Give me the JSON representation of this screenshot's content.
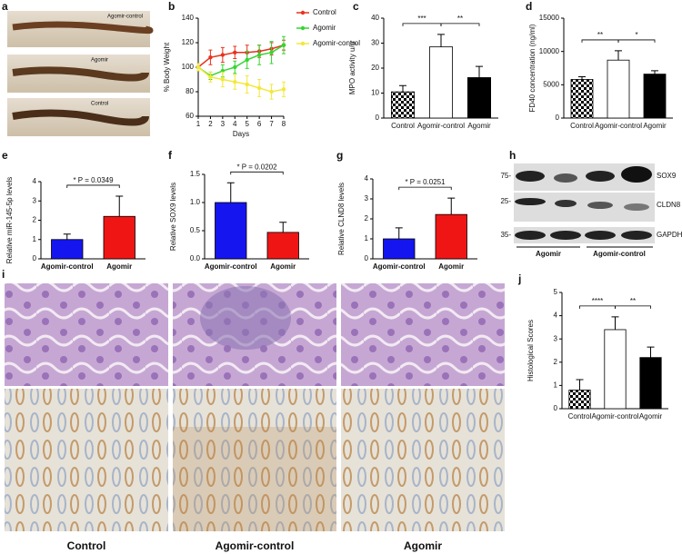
{
  "panel_labels": [
    "a",
    "b",
    "c",
    "d",
    "e",
    "f",
    "g",
    "h",
    "i",
    "j"
  ],
  "panel_a": {
    "labels": [
      "Agomir-control",
      "Agomir",
      "Control"
    ]
  },
  "panel_h": {
    "bands": [
      "SOX9",
      "CLDN8",
      "GAPDH"
    ],
    "markers": [
      "75-",
      "25-",
      "35-"
    ],
    "groups": [
      "Agomir",
      "Agomir-control"
    ]
  },
  "panel_i": {
    "columns": [
      "Control",
      "Agomir-control",
      "Agomir"
    ]
  },
  "chart_data": [
    {
      "type": "line",
      "ylabel": "% Body Weight",
      "xlabel": "Days",
      "x": [
        1,
        2,
        3,
        4,
        5,
        6,
        7,
        8
      ],
      "xlim": [
        1,
        8
      ],
      "xticks": [
        1,
        2,
        3,
        4,
        5,
        6,
        7,
        8
      ],
      "ylim": [
        60,
        140
      ],
      "yticks": [
        60,
        80,
        100,
        120,
        140
      ],
      "series": [
        {
          "name": "Control",
          "color": "#e8321e",
          "values": [
            100,
            108,
            110,
            112,
            112,
            113,
            115,
            118
          ],
          "errors": [
            3,
            6,
            6,
            5,
            6,
            5,
            5,
            4
          ]
        },
        {
          "name": "Agomir",
          "color": "#35d631",
          "values": [
            100,
            93,
            97,
            100,
            106,
            110,
            112,
            118
          ],
          "errors": [
            3,
            3,
            5,
            5,
            7,
            8,
            9,
            7
          ]
        },
        {
          "name": "Agomir-control",
          "color": "#f2e83a",
          "values": [
            100,
            92,
            90,
            88,
            86,
            83,
            80,
            82
          ],
          "errors": [
            3,
            4,
            6,
            6,
            7,
            7,
            6,
            6
          ]
        }
      ]
    },
    {
      "type": "bar",
      "ylabel": "MPO activity u/g",
      "categories": [
        "Control",
        "Agomir-control",
        "Agomir"
      ],
      "values": [
        10.5,
        28.5,
        16.2
      ],
      "errors": [
        2.5,
        5,
        4.5
      ],
      "colors": [
        "#000000",
        "#ffffff",
        "#000000"
      ],
      "patterns": [
        true,
        false,
        false
      ],
      "ylim": [
        0,
        40
      ],
      "yticks": [
        0,
        10,
        20,
        30,
        40
      ],
      "annotations": [
        {
          "text": "***",
          "from": 0,
          "to": 1
        },
        {
          "text": "**",
          "from": 1,
          "to": 2
        }
      ]
    },
    {
      "type": "bar",
      "ylabel": "FD40 concentration (ng/ml)",
      "categories": [
        "Control",
        "Agomir-control",
        "Agomir"
      ],
      "values": [
        5800,
        8700,
        6600
      ],
      "errors": [
        400,
        1400,
        500
      ],
      "colors": [
        "#000000",
        "#ffffff",
        "#000000"
      ],
      "patterns": [
        true,
        false,
        false
      ],
      "ylim": [
        0,
        15000
      ],
      "yticks": [
        0,
        5000,
        10000,
        15000
      ],
      "annotations": [
        {
          "text": "**",
          "from": 0,
          "to": 1
        },
        {
          "text": "*",
          "from": 1,
          "to": 2
        }
      ]
    },
    {
      "type": "bar",
      "ylabel": "Relative miR-145-5p levels",
      "categories": [
        "Agomir-control",
        "Agomir"
      ],
      "values": [
        1.0,
        2.2
      ],
      "errors": [
        0.28,
        1.05
      ],
      "colors": [
        "#1515f0",
        "#f01515"
      ],
      "patterns": [
        false,
        false
      ],
      "ylim": [
        0,
        4
      ],
      "yticks": [
        0,
        1,
        2,
        3,
        4
      ],
      "annotations": [
        {
          "text": "* P = 0.0349",
          "from": 0,
          "to": 1
        }
      ]
    },
    {
      "type": "bar",
      "ylabel": "Relative SOX9 levels",
      "categories": [
        "Agomir-control",
        "Agomir"
      ],
      "values": [
        1.0,
        0.47
      ],
      "errors": [
        0.35,
        0.18
      ],
      "colors": [
        "#1515f0",
        "#f01515"
      ],
      "patterns": [
        false,
        false
      ],
      "ylim": [
        0,
        1.5
      ],
      "yticks": [
        {
          "value": 0,
          "label": "0.0"
        },
        {
          "value": 0.5,
          "label": "0.5"
        },
        {
          "value": 1,
          "label": "1.0"
        },
        {
          "value": 1.5,
          "label": "1.5"
        }
      ],
      "annotations": [
        {
          "text": "* P = 0.0202",
          "from": 0,
          "to": 1
        }
      ]
    },
    {
      "type": "bar",
      "ylabel": "Relative CLND8 levels",
      "categories": [
        "Agomir-control",
        "Agomir"
      ],
      "values": [
        1.0,
        2.22
      ],
      "errors": [
        0.55,
        0.82
      ],
      "colors": [
        "#1515f0",
        "#f01515"
      ],
      "patterns": [
        false,
        false
      ],
      "ylim": [
        0,
        4
      ],
      "yticks": [
        0,
        1,
        2,
        3,
        4
      ],
      "annotations": [
        {
          "text": "* P = 0.0251",
          "from": 0,
          "to": 1
        }
      ]
    },
    {
      "type": "bar",
      "ylabel": "Histological Scores",
      "categories": [
        "Control",
        "Agomir-control",
        "Agomir"
      ],
      "values": [
        0.8,
        3.4,
        2.2
      ],
      "errors": [
        0.45,
        0.55,
        0.45
      ],
      "colors": [
        "#000000",
        "#ffffff",
        "#000000"
      ],
      "patterns": [
        true,
        false,
        false
      ],
      "ylim": [
        0,
        5
      ],
      "yticks": [
        0,
        1,
        2,
        3,
        4,
        5
      ],
      "annotations": [
        {
          "text": "****",
          "from": 0,
          "to": 1
        },
        {
          "text": "**",
          "from": 1,
          "to": 2
        }
      ]
    }
  ]
}
